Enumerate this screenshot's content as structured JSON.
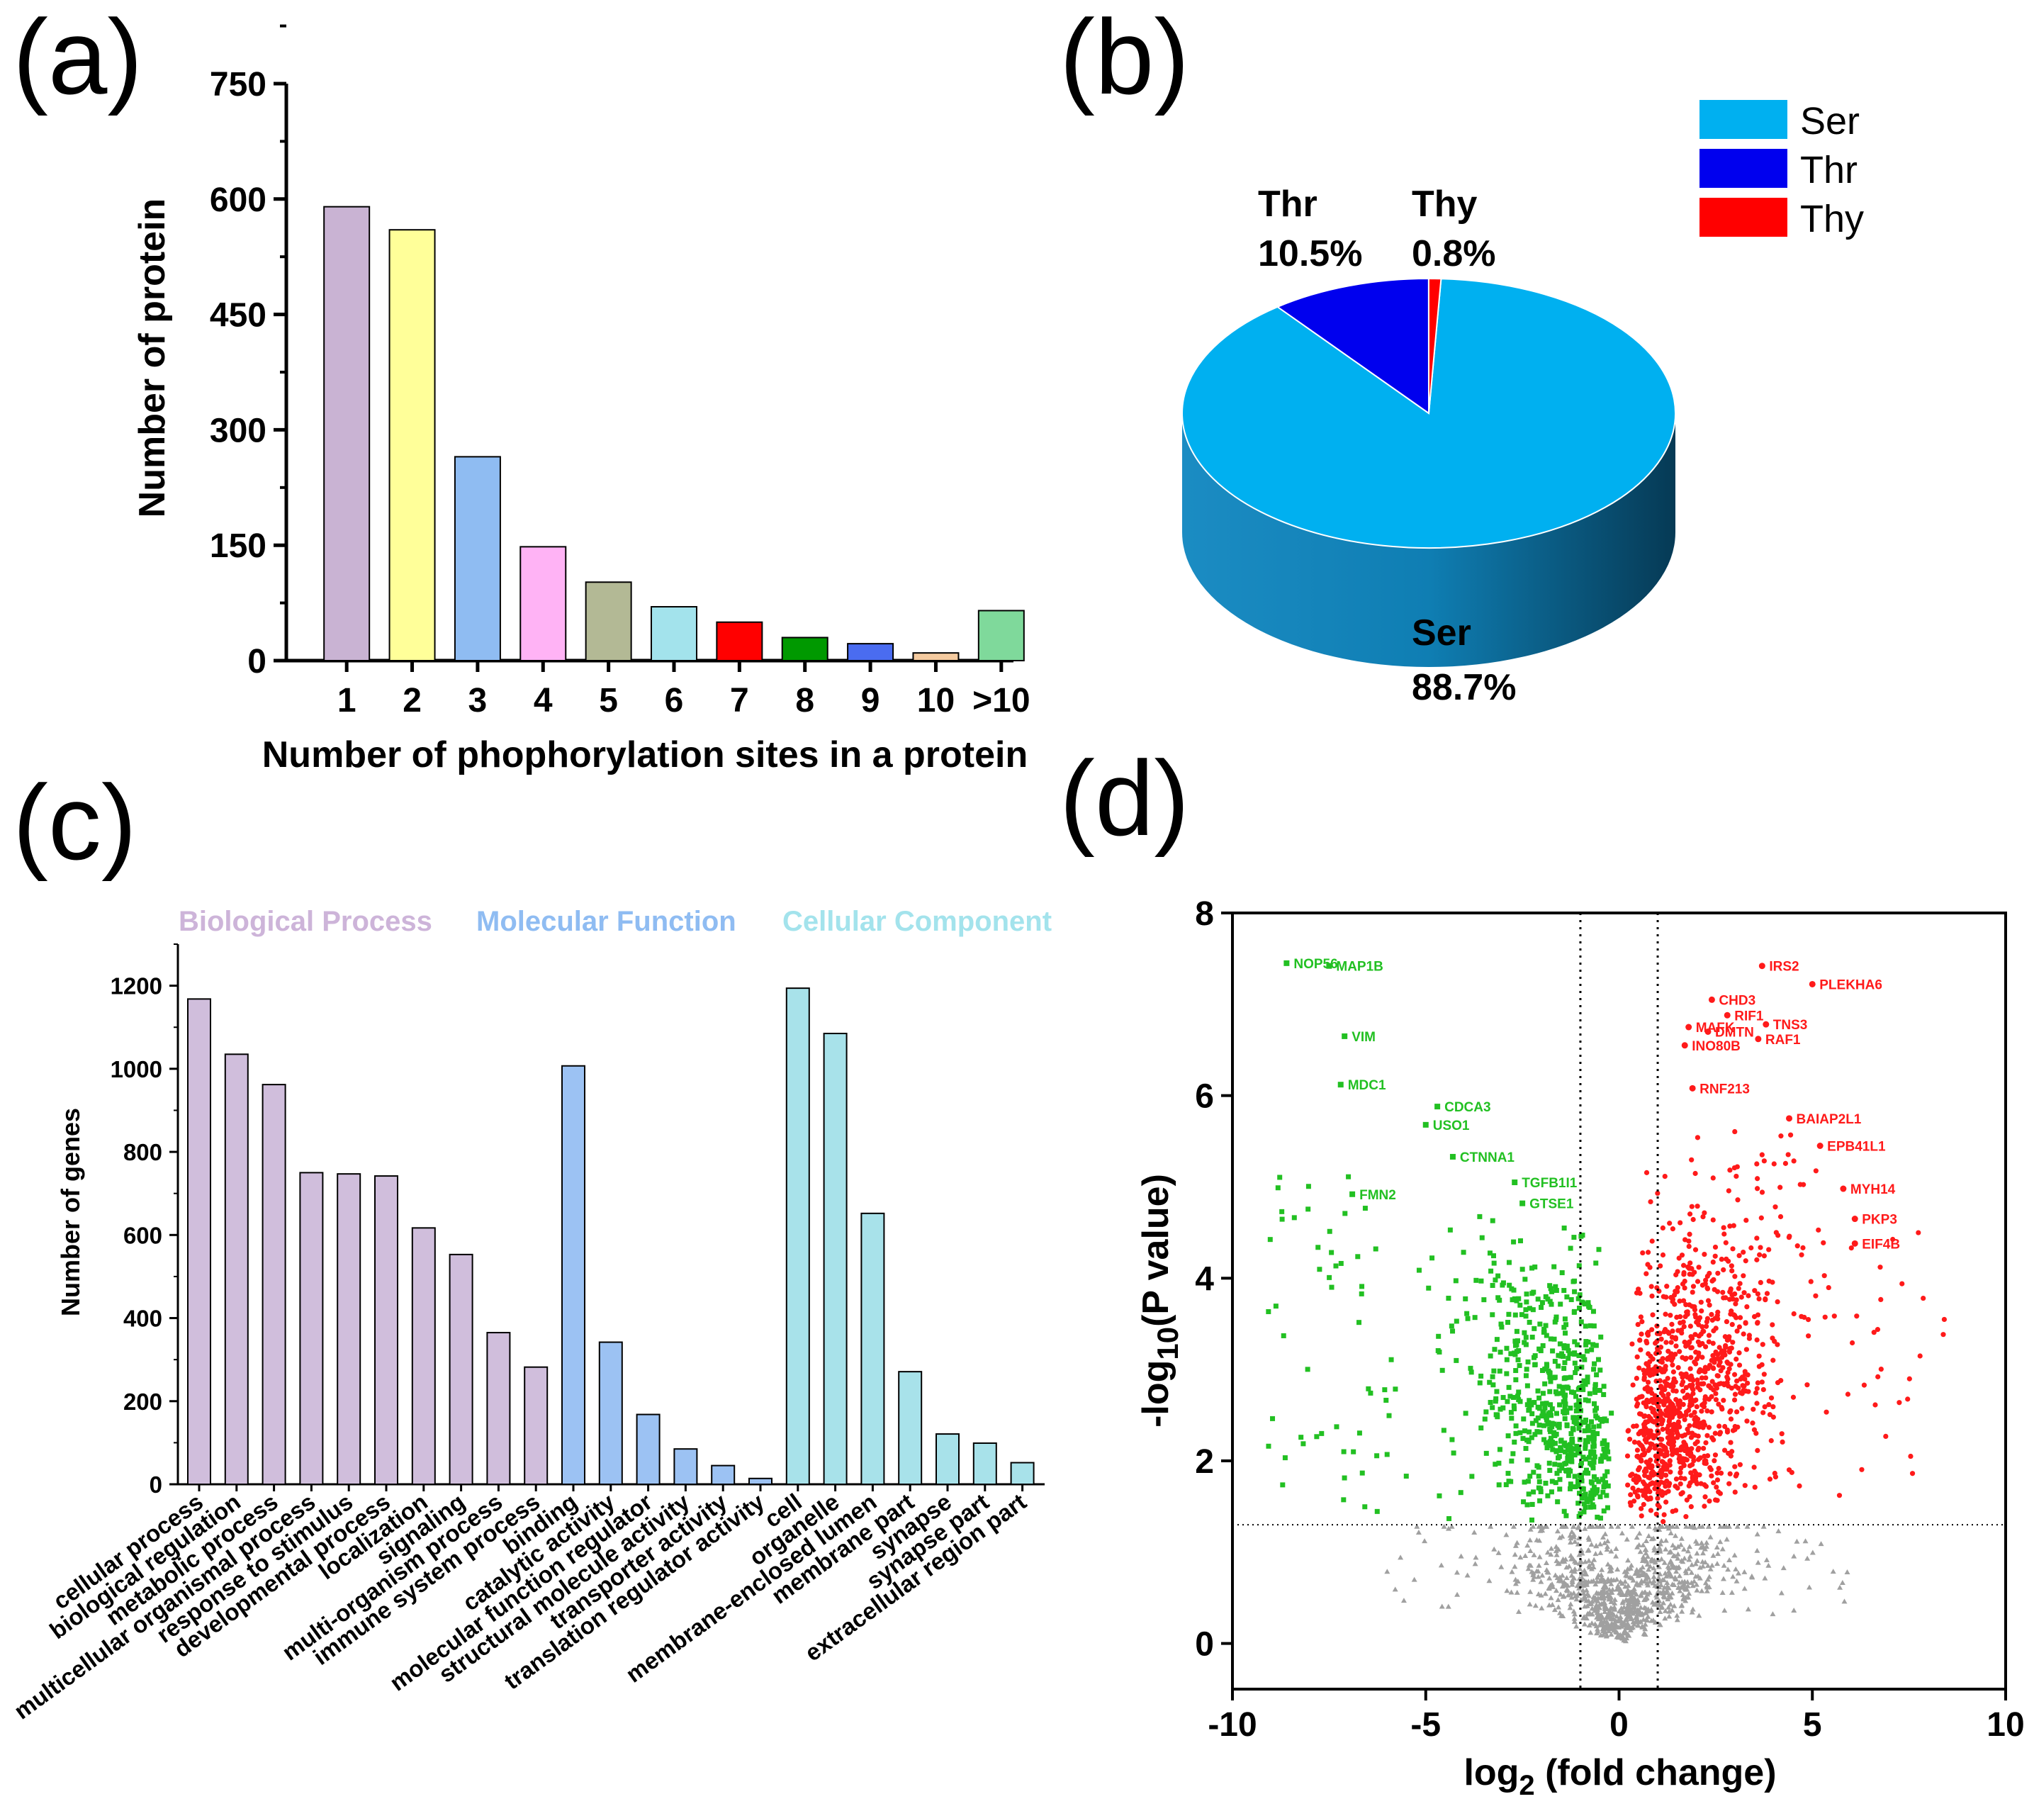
{
  "panels": {
    "a": "(a)",
    "b": "(b)",
    "c": "(c)",
    "d": "(d)"
  },
  "chart_data": [
    {
      "id": "a",
      "type": "bar",
      "title": "",
      "xlabel": "Number of phophorylation sites in a protein",
      "ylabel": "Number of protein",
      "ylim": [
        0,
        750
      ],
      "yticks": [
        "0",
        "150",
        "300",
        "450",
        "600",
        "750"
      ],
      "categories": [
        "1",
        "2",
        "3",
        "4",
        "5",
        "6",
        "7",
        "8",
        "9",
        "10",
        ">10"
      ],
      "values": [
        590,
        560,
        265,
        148,
        102,
        70,
        50,
        30,
        22,
        10,
        65
      ],
      "colors": [
        "#c9b3d3",
        "#ffff99",
        "#8fbcf2",
        "#ffb3f5",
        "#b3b995",
        "#a3e3ec",
        "#ff0000",
        "#009900",
        "#4a6cf0",
        "#f5cba0",
        "#7fd99b"
      ]
    },
    {
      "id": "b",
      "type": "pie",
      "labels": [
        "Ser",
        "Thr",
        "Thy"
      ],
      "values": [
        88.7,
        10.5,
        0.8
      ],
      "value_labels": [
        "88.7%",
        "10.5%",
        "0.8%"
      ],
      "colors": [
        "#00b0f0",
        "#0000ee",
        "#ff0000"
      ],
      "legend": [
        "Ser",
        "Thr",
        "Thy"
      ],
      "legend_position": "top-right"
    },
    {
      "id": "c",
      "type": "bar",
      "ylabel": "Number of genes",
      "ylim": [
        0,
        1300
      ],
      "yticks": [
        "0",
        "200",
        "400",
        "600",
        "800",
        "1000",
        "1200"
      ],
      "groups": [
        {
          "name": "Biological Process",
          "color": "#cdb4d9",
          "bar_color": "#d0bedc",
          "categories": [
            "cellular process",
            "biological regulation",
            "metabolic process",
            "multicellular organismal process",
            "response to stimulus",
            "developmental process",
            "localization",
            "signaling",
            "multi-organism process",
            "immune system process"
          ],
          "values": [
            1168,
            1035,
            962,
            750,
            747,
            742,
            617,
            553,
            365,
            282
          ]
        },
        {
          "name": "Molecular Function",
          "color": "#8fbcf2",
          "bar_color": "#9cc2f3",
          "categories": [
            "binding",
            "catalytic activity",
            "molecular function regulator",
            "structural molecule activity",
            "transporter activity",
            "translation regulator activity"
          ],
          "values": [
            1007,
            342,
            168,
            85,
            45,
            14
          ]
        },
        {
          "name": "Cellular Component",
          "color": "#a3e3ec",
          "bar_color": "#a8e2ea",
          "categories": [
            "cell",
            "organelle",
            "membrane-enclosed lumen",
            "membrane part",
            "synapse",
            "synapse part",
            "extracellular region part"
          ],
          "values": [
            1194,
            1085,
            652,
            271,
            121,
            99,
            52
          ]
        }
      ]
    },
    {
      "id": "d",
      "type": "scatter",
      "xlabel_main": "log",
      "xlabel_sub": "2",
      "xlabel_rest": " (fold change)",
      "ylabel_main": "-log",
      "ylabel_sub": "10",
      "ylabel_rest": "(P value)",
      "xlim": [
        -10,
        10
      ],
      "ylim": [
        -0.5,
        8
      ],
      "xticks": [
        "-10",
        "-5",
        "0",
        "5",
        "10"
      ],
      "yticks": [
        "0",
        "2",
        "4",
        "6",
        "8"
      ],
      "thresholds": {
        "log2fc": [
          -1,
          1
        ],
        "neglog10p": 1.3
      },
      "colors": {
        "down": "#22c022",
        "up": "#ff1a1a",
        "ns": "#a0a0a0"
      },
      "labeled_down": [
        {
          "gene": "NOP56",
          "x": -8.6,
          "y": 7.45
        },
        {
          "gene": "MAP1B",
          "x": -7.5,
          "y": 7.42
        },
        {
          "gene": "VIM",
          "x": -7.1,
          "y": 6.65
        },
        {
          "gene": "MDC1",
          "x": -7.2,
          "y": 6.12
        },
        {
          "gene": "CDCA3",
          "x": -4.7,
          "y": 5.88
        },
        {
          "gene": "USO1",
          "x": -5.0,
          "y": 5.68
        },
        {
          "gene": "CTNNA1",
          "x": -4.3,
          "y": 5.33
        },
        {
          "gene": "TGFB1I1",
          "x": -2.7,
          "y": 5.05
        },
        {
          "gene": "FMN2",
          "x": -6.9,
          "y": 4.92
        },
        {
          "gene": "GTSE1",
          "x": -2.5,
          "y": 4.82
        }
      ],
      "labeled_up": [
        {
          "gene": "IRS2",
          "x": 3.7,
          "y": 7.42
        },
        {
          "gene": "PLEKHA6",
          "x": 5.0,
          "y": 7.22
        },
        {
          "gene": "CHD3",
          "x": 2.4,
          "y": 7.05
        },
        {
          "gene": "RIF1",
          "x": 2.8,
          "y": 6.88
        },
        {
          "gene": "TNS3",
          "x": 3.8,
          "y": 6.78
        },
        {
          "gene": "MAFK",
          "x": 1.8,
          "y": 6.75
        },
        {
          "gene": "DMTN",
          "x": 2.3,
          "y": 6.7
        },
        {
          "gene": "RAF1",
          "x": 3.6,
          "y": 6.62
        },
        {
          "gene": "INO80B",
          "x": 1.7,
          "y": 6.55
        },
        {
          "gene": "RNF213",
          "x": 1.9,
          "y": 6.08
        },
        {
          "gene": "BAIAP2L1",
          "x": 4.4,
          "y": 5.75
        },
        {
          "gene": "EPB41L1",
          "x": 5.2,
          "y": 5.45
        },
        {
          "gene": "MYH14",
          "x": 5.8,
          "y": 4.98
        },
        {
          "gene": "PKP3",
          "x": 6.1,
          "y": 4.65
        },
        {
          "gene": "EIF4B",
          "x": 6.1,
          "y": 4.38
        }
      ]
    }
  ]
}
